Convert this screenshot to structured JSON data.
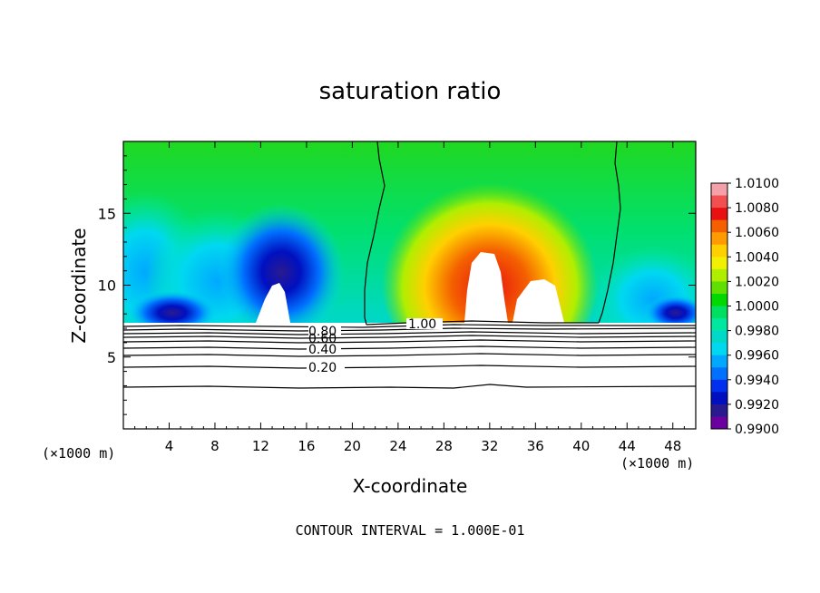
{
  "chart_data": {
    "type": "heatmap",
    "title": "saturation ratio",
    "xlabel": "X-coordinate",
    "ylabel": "Z-coordinate",
    "x_unit_left": "(×1000 m)",
    "x_unit_right": "(×1000 m)",
    "xlim": [
      0,
      50
    ],
    "ylim": [
      0,
      20
    ],
    "x_ticks": [
      "4",
      "8",
      "12",
      "16",
      "20",
      "24",
      "28",
      "32",
      "36",
      "40",
      "44",
      "48"
    ],
    "y_ticks": [
      "5",
      "10",
      "15"
    ],
    "colorbar": {
      "levels": [
        "1.0100",
        "1.0080",
        "1.0060",
        "1.0040",
        "1.0020",
        "1.0000",
        "0.9980",
        "0.9960",
        "0.9940",
        "0.9920",
        "0.9900"
      ],
      "colors": [
        "#f4a0a8",
        "#f05050",
        "#e81010",
        "#f46000",
        "#ff9a00",
        "#ffd000",
        "#f0f000",
        "#b0ee00",
        "#60e000",
        "#00d800",
        "#00e060",
        "#00e8a0",
        "#00d8c8",
        "#00d8f0",
        "#00a8ff",
        "#0070ff",
        "#0030ee",
        "#0010c0",
        "#2a1a90",
        "#6a00a0"
      ]
    },
    "contour_labels": [
      "0.80",
      "0.60",
      "0.40",
      "0.20",
      "1.00"
    ],
    "contour_levels": [
      0.1,
      0.2,
      0.3,
      0.4,
      0.5,
      0.6,
      0.7,
      0.8,
      0.9,
      1.0
    ],
    "field_description_points": [
      {
        "x": 14,
        "z": 10.5,
        "value": 0.9905
      },
      {
        "x": 32,
        "z": 13,
        "value": 1.009
      },
      {
        "x": 41,
        "z": 19,
        "value": 1.0
      }
    ]
  },
  "footer": "CONTOUR INTERVAL = 1.000E-01"
}
